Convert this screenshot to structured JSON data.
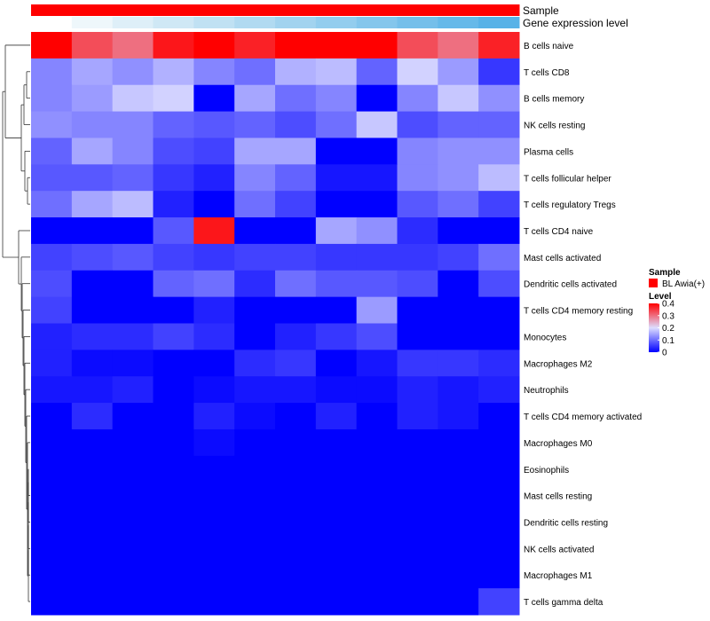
{
  "chart_data": {
    "type": "heatmap",
    "annotation_tracks": [
      {
        "name": "Sample",
        "colors": [
          "#ff0000",
          "#ff0000",
          "#ff0000",
          "#ff0000",
          "#ff0000",
          "#ff0000",
          "#ff0000",
          "#ff0000",
          "#ff0000",
          "#ff0000",
          "#ff0000",
          "#ff0000"
        ]
      },
      {
        "name": "Gene expression level",
        "colors": [
          "#ffffff",
          "#eef7fb",
          "#deeff8",
          "#cfe8f5",
          "#c0e1f3",
          "#b1daf1",
          "#a2d3ef",
          "#93cdee",
          "#84c6ec",
          "#75bfea",
          "#66b9e9",
          "#57b2e7"
        ]
      }
    ],
    "rows": [
      "B cells naive",
      "T cells CD8",
      "B cells memory",
      "NK cells resting",
      "Plasma cells",
      "T cells follicular helper",
      "T cells regulatory  Tregs",
      "T cells CD4 naive",
      "Mast cells activated",
      "Dendritic cells activated",
      "T cells CD4 memory resting",
      "Monocytes",
      "Macrophages M2",
      "Neutrophils",
      "T cells CD4 memory activated",
      "Macrophages M0",
      "Eosinophils",
      "Mast cells resting",
      "Dendritic cells resting",
      "NK cells activated",
      "Macrophages M1",
      "T cells gamma delta"
    ],
    "values": [
      [
        0.42,
        0.33,
        0.3,
        0.38,
        0.4,
        0.37,
        0.4,
        0.42,
        0.42,
        0.33,
        0.3,
        0.37
      ],
      [
        0.12,
        0.15,
        0.13,
        0.16,
        0.12,
        0.1,
        0.16,
        0.17,
        0.09,
        0.19,
        0.14,
        0.05
      ],
      [
        0.12,
        0.14,
        0.18,
        0.19,
        0.0,
        0.15,
        0.1,
        0.12,
        0.0,
        0.12,
        0.18,
        0.13
      ],
      [
        0.13,
        0.12,
        0.12,
        0.09,
        0.08,
        0.09,
        0.07,
        0.1,
        0.18,
        0.07,
        0.09,
        0.09
      ],
      [
        0.09,
        0.15,
        0.12,
        0.07,
        0.06,
        0.15,
        0.15,
        0.0,
        0.0,
        0.12,
        0.13,
        0.13
      ],
      [
        0.08,
        0.08,
        0.09,
        0.05,
        0.03,
        0.12,
        0.09,
        0.02,
        0.02,
        0.12,
        0.13,
        0.17
      ],
      [
        0.1,
        0.15,
        0.17,
        0.03,
        0.0,
        0.1,
        0.06,
        0.0,
        0.0,
        0.08,
        0.1,
        0.06
      ],
      [
        0.0,
        0.0,
        0.0,
        0.08,
        0.38,
        0.0,
        0.0,
        0.15,
        0.13,
        0.04,
        0.0,
        0.0
      ],
      [
        0.06,
        0.07,
        0.08,
        0.06,
        0.05,
        0.06,
        0.06,
        0.05,
        0.05,
        0.05,
        0.06,
        0.1
      ],
      [
        0.07,
        0.0,
        0.0,
        0.09,
        0.1,
        0.04,
        0.1,
        0.08,
        0.08,
        0.07,
        0.0,
        0.07
      ],
      [
        0.06,
        0.0,
        0.0,
        0.0,
        0.03,
        0.0,
        0.0,
        0.0,
        0.14,
        0.0,
        0.0,
        0.0
      ],
      [
        0.03,
        0.04,
        0.04,
        0.06,
        0.04,
        0.0,
        0.03,
        0.05,
        0.07,
        0.0,
        0.0,
        0.0
      ],
      [
        0.03,
        0.01,
        0.01,
        0.0,
        0.0,
        0.04,
        0.05,
        0.0,
        0.02,
        0.05,
        0.05,
        0.04
      ],
      [
        0.02,
        0.02,
        0.03,
        0.0,
        0.01,
        0.02,
        0.02,
        0.01,
        0.01,
        0.03,
        0.02,
        0.03
      ],
      [
        0.0,
        0.04,
        0.0,
        0.0,
        0.03,
        0.01,
        0.0,
        0.03,
        0.0,
        0.03,
        0.02,
        0.0
      ],
      [
        0.0,
        0.0,
        0.0,
        0.0,
        0.01,
        0.0,
        0.0,
        0.0,
        0.0,
        0.0,
        0.0,
        0.0
      ],
      [
        0.0,
        0.0,
        0.0,
        0.0,
        0.0,
        0.0,
        0.0,
        0.0,
        0.0,
        0.0,
        0.0,
        0.0
      ],
      [
        0.0,
        0.0,
        0.0,
        0.0,
        0.0,
        0.0,
        0.0,
        0.0,
        0.0,
        0.0,
        0.0,
        0.0
      ],
      [
        0.0,
        0.0,
        0.0,
        0.0,
        0.0,
        0.0,
        0.0,
        0.0,
        0.0,
        0.0,
        0.0,
        0.0
      ],
      [
        0.0,
        0.0,
        0.0,
        0.0,
        0.0,
        0.0,
        0.0,
        0.0,
        0.0,
        0.0,
        0.0,
        0.0
      ],
      [
        0.0,
        0.0,
        0.0,
        0.0,
        0.0,
        0.0,
        0.0,
        0.0,
        0.0,
        0.0,
        0.0,
        0.0
      ],
      [
        0.0,
        0.0,
        0.0,
        0.0,
        0.0,
        0.0,
        0.0,
        0.0,
        0.0,
        0.0,
        0.0,
        0.06
      ]
    ],
    "color_scale": {
      "stops": [
        {
          "value": 0.0,
          "color": "#0000ff"
        },
        {
          "value": 0.2,
          "color": "#ddddff"
        },
        {
          "value": 0.4,
          "color": "#ff0000"
        }
      ],
      "range": [
        0,
        0.4
      ]
    },
    "legend": {
      "placement": "right",
      "sample_title": "Sample",
      "sample_label": "BL Awia(+)",
      "sample_color": "#ff0000",
      "level_title": "Level",
      "ticks": [
        "0.4",
        "0.3",
        "0.2",
        "0.1",
        "0"
      ],
      "tick_values": [
        0.4,
        0.3,
        0.2,
        0.1,
        0.0
      ]
    },
    "row_dendrogram": true,
    "grid": false
  }
}
